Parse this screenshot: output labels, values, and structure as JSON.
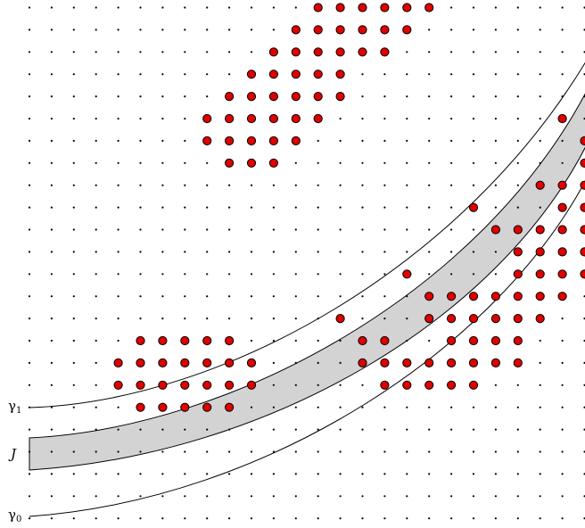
{
  "labels": {
    "gamma1": "γ",
    "gamma1_sub": "1",
    "band": "J",
    "gamma0": "γ",
    "gamma0_sub": "0"
  },
  "colors": {
    "lattice_dot": "#000000",
    "marked_fill": "#e00000",
    "marked_stroke": "#000000",
    "band_fill": "#d3d3d3",
    "curve_stroke": "#000000"
  },
  "grid": {
    "columns": 26,
    "rows": 24
  },
  "marked_points": [
    [
      13,
      0
    ],
    [
      14,
      0
    ],
    [
      15,
      0
    ],
    [
      16,
      0
    ],
    [
      17,
      0
    ],
    [
      18,
      0
    ],
    [
      12,
      1
    ],
    [
      13,
      1
    ],
    [
      14,
      1
    ],
    [
      15,
      1
    ],
    [
      16,
      1
    ],
    [
      17,
      1
    ],
    [
      11,
      2
    ],
    [
      12,
      2
    ],
    [
      13,
      2
    ],
    [
      14,
      2
    ],
    [
      15,
      2
    ],
    [
      16,
      2
    ],
    [
      10,
      3
    ],
    [
      11,
      3
    ],
    [
      12,
      3
    ],
    [
      13,
      3
    ],
    [
      14,
      3
    ],
    [
      9,
      4
    ],
    [
      10,
      4
    ],
    [
      11,
      4
    ],
    [
      12,
      4
    ],
    [
      13,
      4
    ],
    [
      14,
      4
    ],
    [
      8,
      5
    ],
    [
      9,
      5
    ],
    [
      10,
      5
    ],
    [
      11,
      5
    ],
    [
      12,
      5
    ],
    [
      13,
      5
    ],
    [
      8,
      6
    ],
    [
      9,
      6
    ],
    [
      10,
      6
    ],
    [
      11,
      6
    ],
    [
      12,
      6
    ],
    [
      9,
      7
    ],
    [
      10,
      7
    ],
    [
      11,
      7
    ],
    [
      24,
      5
    ],
    [
      25,
      6
    ],
    [
      25,
      7
    ],
    [
      23,
      8
    ],
    [
      24,
      8
    ],
    [
      25,
      8
    ],
    [
      20,
      9
    ],
    [
      24,
      9
    ],
    [
      25,
      9
    ],
    [
      21,
      10
    ],
    [
      22,
      10
    ],
    [
      23,
      10
    ],
    [
      24,
      10
    ],
    [
      25,
      10
    ],
    [
      22,
      11
    ],
    [
      23,
      11
    ],
    [
      24,
      11
    ],
    [
      25,
      11
    ],
    [
      17,
      12
    ],
    [
      22,
      12
    ],
    [
      23,
      12
    ],
    [
      24,
      12
    ],
    [
      25,
      12
    ],
    [
      18,
      13
    ],
    [
      19,
      13
    ],
    [
      20,
      13
    ],
    [
      21,
      13
    ],
    [
      22,
      13
    ],
    [
      23,
      13
    ],
    [
      24,
      13
    ],
    [
      14,
      14
    ],
    [
      18,
      14
    ],
    [
      19,
      14
    ],
    [
      20,
      14
    ],
    [
      21,
      14
    ],
    [
      22,
      14
    ],
    [
      23,
      14
    ],
    [
      5,
      15
    ],
    [
      6,
      15
    ],
    [
      7,
      15
    ],
    [
      8,
      15
    ],
    [
      9,
      15
    ],
    [
      15,
      15
    ],
    [
      16,
      15
    ],
    [
      19,
      15
    ],
    [
      20,
      15
    ],
    [
      21,
      15
    ],
    [
      22,
      15
    ],
    [
      4,
      16
    ],
    [
      5,
      16
    ],
    [
      6,
      16
    ],
    [
      7,
      16
    ],
    [
      8,
      16
    ],
    [
      9,
      16
    ],
    [
      10,
      16
    ],
    [
      15,
      16
    ],
    [
      16,
      16
    ],
    [
      17,
      16
    ],
    [
      18,
      16
    ],
    [
      19,
      16
    ],
    [
      20,
      16
    ],
    [
      21,
      16
    ],
    [
      22,
      16
    ],
    [
      4,
      17
    ],
    [
      5,
      17
    ],
    [
      6,
      17
    ],
    [
      7,
      17
    ],
    [
      8,
      17
    ],
    [
      9,
      17
    ],
    [
      10,
      17
    ],
    [
      16,
      17
    ],
    [
      17,
      17
    ],
    [
      18,
      17
    ],
    [
      19,
      17
    ],
    [
      20,
      17
    ],
    [
      5,
      18
    ],
    [
      6,
      18
    ],
    [
      7,
      18
    ],
    [
      8,
      18
    ],
    [
      9,
      18
    ]
  ]
}
